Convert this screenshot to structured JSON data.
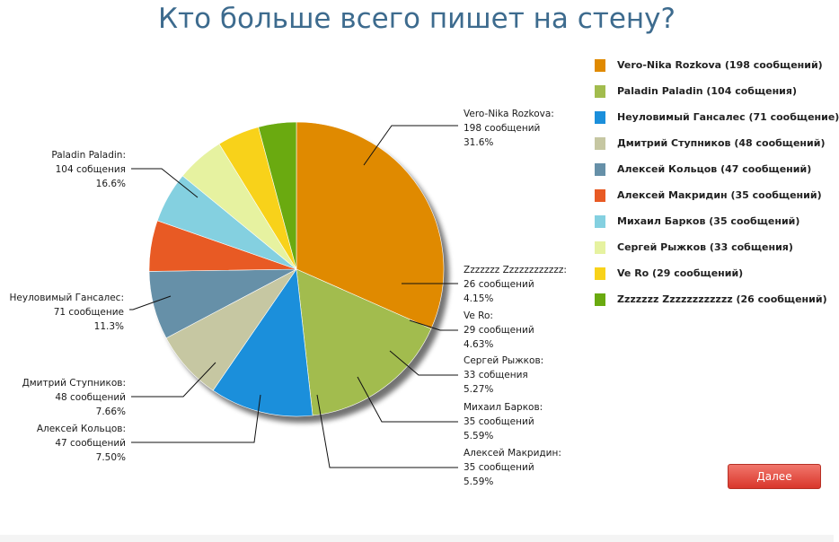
{
  "page": {
    "title": "Кто больше всего пишет на стену?",
    "next_button_label": "Далее"
  },
  "chart_data": {
    "type": "pie",
    "title": "Кто больше всего пишет на стену?",
    "legend_position": "right",
    "slices": [
      {
        "name": "Vero-Nika Rozkova",
        "value": 198,
        "count_text": "198 сообщений",
        "percent_text": "31.6%",
        "legend_text": "Vero-Nika Rozkova (198 сообщений)",
        "color": "#e08a00"
      },
      {
        "name": "Paladin Paladin",
        "value": 104,
        "count_text": "104 собщения",
        "percent_text": "16.6%",
        "legend_text": "Paladin Paladin (104 собщения)",
        "color": "#a2bc4e"
      },
      {
        "name": "Неуловимый Гансалес",
        "value": 71,
        "count_text": "71 сообщение",
        "percent_text": "11.3%",
        "legend_text": "Неуловимый Гансалес (71 сообщение)",
        "color": "#1b8fdb"
      },
      {
        "name": "Дмитрий Ступников",
        "value": 48,
        "count_text": "48 сообщений",
        "percent_text": "7.66%",
        "legend_text": "Дмитрий Ступников (48 сообщений)",
        "color": "#c6c7a2"
      },
      {
        "name": "Алексей Кольцов",
        "value": 47,
        "count_text": "47 сообщений",
        "percent_text": "7.50%",
        "legend_text": "Алексей Кольцов (47 сообщений)",
        "color": "#6690a8"
      },
      {
        "name": "Алексей Макридин",
        "value": 35,
        "count_text": "35 сообщений",
        "percent_text": "5.59%",
        "legend_text": "Алексей Макридин (35 сообщений)",
        "color": "#e85a24"
      },
      {
        "name": "Михаил Барков",
        "value": 35,
        "count_text": "35 сообщений",
        "percent_text": "5.59%",
        "legend_text": "Михаил Барков (35 сообщений)",
        "color": "#84d0e0"
      },
      {
        "name": "Сергей Рыжков",
        "value": 33,
        "count_text": "33 собщения",
        "percent_text": "5.27%",
        "legend_text": "Сергей Рыжков (33 собщения)",
        "color": "#e6f2a0"
      },
      {
        "name": "Ve Ro",
        "value": 29,
        "count_text": "29 сообщений",
        "percent_text": "4.63%",
        "legend_text": "Ve Ro (29 сообщений)",
        "color": "#f8d21a"
      },
      {
        "name": "Zzzzzzz Zzzzzzzzzzzz",
        "value": 26,
        "count_text": "26 сообщений",
        "percent_text": "4.15%",
        "legend_text": "Zzzzzzz Zzzzzzzzzzzz (26 сообщений)",
        "color": "#6aaa10"
      }
    ]
  }
}
